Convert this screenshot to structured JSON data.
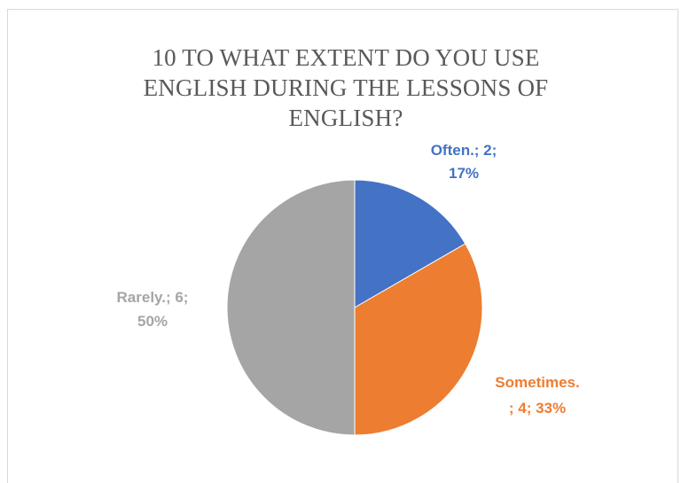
{
  "chart_data": {
    "type": "pie",
    "title_lines": [
      "10 TO WHAT EXTENT DO YOU USE",
      "ENGLISH DURING THE LESSONS OF",
      "ENGLISH?"
    ],
    "slices": [
      {
        "category": "Often.",
        "value": 2,
        "percent": "17%",
        "color": "#4472C4",
        "label_lines": [
          "Often.; 2;",
          "17%"
        ]
      },
      {
        "category": "Sometimes.",
        "value": 4,
        "percent": "33%",
        "color": "#ED7D31",
        "label_lines": [
          "Sometimes.",
          "; 4; 33%"
        ]
      },
      {
        "category": "Rarely.",
        "value": 6,
        "percent": "50%",
        "color": "#A5A5A5",
        "label_lines": [
          "Rarely.; 6;",
          "50%"
        ]
      }
    ]
  }
}
